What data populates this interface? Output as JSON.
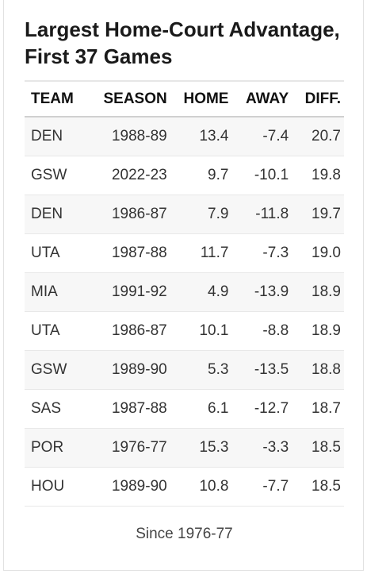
{
  "title": "Largest Home-Court Advantage, First 37 Games",
  "table": {
    "headers": {
      "team": "TEAM",
      "season": "SEASON",
      "home": "HOME",
      "away": "AWAY",
      "diff": "DIFF."
    },
    "rows": [
      {
        "team": "DEN",
        "season": "1988-89",
        "home": "13.4",
        "away": "-7.4",
        "diff": "20.7"
      },
      {
        "team": "GSW",
        "season": "2022-23",
        "home": "9.7",
        "away": "-10.1",
        "diff": "19.8"
      },
      {
        "team": "DEN",
        "season": "1986-87",
        "home": "7.9",
        "away": "-11.8",
        "diff": "19.7"
      },
      {
        "team": "UTA",
        "season": "1987-88",
        "home": "11.7",
        "away": "-7.3",
        "diff": "19.0"
      },
      {
        "team": "MIA",
        "season": "1991-92",
        "home": "4.9",
        "away": "-13.9",
        "diff": "18.9"
      },
      {
        "team": "UTA",
        "season": "1986-87",
        "home": "10.1",
        "away": "-8.8",
        "diff": "18.9"
      },
      {
        "team": "GSW",
        "season": "1989-90",
        "home": "5.3",
        "away": "-13.5",
        "diff": "18.8"
      },
      {
        "team": "SAS",
        "season": "1987-88",
        "home": "6.1",
        "away": "-12.7",
        "diff": "18.7"
      },
      {
        "team": "POR",
        "season": "1976-77",
        "home": "15.3",
        "away": "-3.3",
        "diff": "18.5"
      },
      {
        "team": "HOU",
        "season": "1989-90",
        "home": "10.8",
        "away": "-7.7",
        "diff": "18.5"
      }
    ]
  },
  "footnote": "Since 1976-77"
}
